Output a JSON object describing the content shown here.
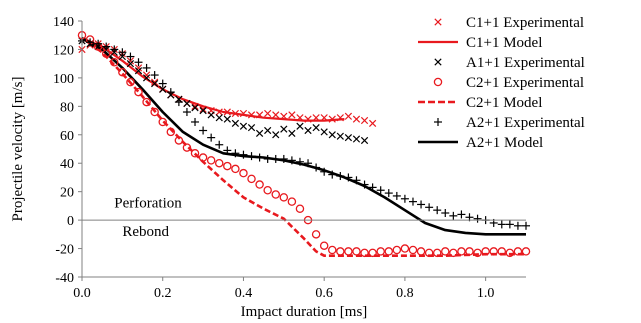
{
  "chart_data": {
    "type": "line",
    "title": "",
    "xlabel": "Impact duration [ms]",
    "ylabel": "Projectile velocity  [m/s]",
    "xlim": [
      0.0,
      1.1
    ],
    "ylim": [
      -40,
      140
    ],
    "x_ticks": [
      "0.0",
      "0.2",
      "0.4",
      "0.6",
      "0.8",
      "1.0"
    ],
    "x_tick_values": [
      0.0,
      0.2,
      0.4,
      0.6,
      0.8,
      1.0
    ],
    "y_ticks": [
      "-40",
      "-20",
      "0",
      "20",
      "40",
      "60",
      "80",
      "100",
      "120",
      "140"
    ],
    "y_tick_values": [
      -40,
      -20,
      0,
      20,
      40,
      60,
      80,
      100,
      120,
      140
    ],
    "grid": false,
    "zero_line": true,
    "legend_position": "right",
    "annotations": [
      {
        "text": "Perforation",
        "x": 0.08,
        "y": 9
      },
      {
        "text": "Rebond",
        "x": 0.1,
        "y": -11
      }
    ],
    "series": [
      {
        "name": "C1+1 Experimental",
        "style": "marker-x",
        "color": "#e8191e",
        "points": [
          [
            0.0,
            120
          ],
          [
            0.02,
            123
          ],
          [
            0.04,
            124
          ],
          [
            0.06,
            122
          ],
          [
            0.08,
            120
          ],
          [
            0.1,
            117
          ],
          [
            0.12,
            112
          ],
          [
            0.14,
            107
          ],
          [
            0.16,
            102
          ],
          [
            0.18,
            97
          ],
          [
            0.2,
            92
          ],
          [
            0.22,
            88
          ],
          [
            0.24,
            85
          ],
          [
            0.26,
            82
          ],
          [
            0.28,
            80
          ],
          [
            0.3,
            78
          ],
          [
            0.32,
            77
          ],
          [
            0.34,
            76
          ],
          [
            0.36,
            76
          ],
          [
            0.38,
            75
          ],
          [
            0.4,
            75
          ],
          [
            0.42,
            74
          ],
          [
            0.44,
            74
          ],
          [
            0.46,
            75
          ],
          [
            0.48,
            74
          ],
          [
            0.5,
            73
          ],
          [
            0.52,
            74
          ],
          [
            0.54,
            72
          ],
          [
            0.56,
            71
          ],
          [
            0.58,
            72
          ],
          [
            0.6,
            72
          ],
          [
            0.62,
            71
          ],
          [
            0.64,
            72
          ],
          [
            0.66,
            73
          ],
          [
            0.68,
            71
          ],
          [
            0.7,
            70
          ],
          [
            0.72,
            68
          ]
        ]
      },
      {
        "name": "C1+1 Model",
        "style": "line-solid",
        "color": "#e8191e",
        "points": [
          [
            0.0,
            128
          ],
          [
            0.05,
            122
          ],
          [
            0.1,
            112
          ],
          [
            0.15,
            101
          ],
          [
            0.2,
            92
          ],
          [
            0.25,
            85
          ],
          [
            0.3,
            80
          ],
          [
            0.35,
            76
          ],
          [
            0.4,
            74
          ],
          [
            0.45,
            72
          ],
          [
            0.5,
            71
          ],
          [
            0.55,
            70
          ],
          [
            0.6,
            70
          ],
          [
            0.65,
            71
          ]
        ]
      },
      {
        "name": "A1+1 Experimental",
        "style": "marker-x",
        "color": "#000000",
        "points": [
          [
            0.0,
            126
          ],
          [
            0.02,
            124
          ],
          [
            0.04,
            122
          ],
          [
            0.06,
            120
          ],
          [
            0.08,
            118
          ],
          [
            0.1,
            115
          ],
          [
            0.12,
            110
          ],
          [
            0.14,
            105
          ],
          [
            0.16,
            100
          ],
          [
            0.18,
            96
          ],
          [
            0.2,
            92
          ],
          [
            0.22,
            88
          ],
          [
            0.24,
            85
          ],
          [
            0.26,
            82
          ],
          [
            0.28,
            79
          ],
          [
            0.3,
            77
          ],
          [
            0.32,
            74
          ],
          [
            0.34,
            72
          ],
          [
            0.36,
            71
          ],
          [
            0.38,
            68
          ],
          [
            0.4,
            66
          ],
          [
            0.42,
            65
          ],
          [
            0.44,
            61
          ],
          [
            0.46,
            63
          ],
          [
            0.48,
            60
          ],
          [
            0.5,
            64
          ],
          [
            0.52,
            61
          ],
          [
            0.54,
            66
          ],
          [
            0.56,
            63
          ],
          [
            0.58,
            65
          ],
          [
            0.6,
            62
          ],
          [
            0.62,
            60
          ],
          [
            0.64,
            59
          ],
          [
            0.66,
            58
          ],
          [
            0.68,
            57
          ],
          [
            0.7,
            56
          ]
        ]
      },
      {
        "name": "C2+1 Experimental",
        "style": "marker-circle",
        "color": "#e8191e",
        "points": [
          [
            0.0,
            130
          ],
          [
            0.02,
            127
          ],
          [
            0.04,
            122
          ],
          [
            0.06,
            117
          ],
          [
            0.08,
            111
          ],
          [
            0.1,
            104
          ],
          [
            0.12,
            97
          ],
          [
            0.14,
            90
          ],
          [
            0.16,
            83
          ],
          [
            0.18,
            76
          ],
          [
            0.2,
            69
          ],
          [
            0.22,
            62
          ],
          [
            0.24,
            56
          ],
          [
            0.26,
            51
          ],
          [
            0.28,
            47
          ],
          [
            0.3,
            44
          ],
          [
            0.32,
            42
          ],
          [
            0.34,
            40
          ],
          [
            0.36,
            38
          ],
          [
            0.38,
            36
          ],
          [
            0.4,
            33
          ],
          [
            0.42,
            29
          ],
          [
            0.44,
            25
          ],
          [
            0.46,
            21
          ],
          [
            0.48,
            18
          ],
          [
            0.5,
            16
          ],
          [
            0.52,
            13
          ],
          [
            0.54,
            8
          ],
          [
            0.56,
            0
          ],
          [
            0.58,
            -10
          ],
          [
            0.6,
            -18
          ],
          [
            0.62,
            -21
          ],
          [
            0.64,
            -22
          ],
          [
            0.66,
            -22
          ],
          [
            0.68,
            -22
          ],
          [
            0.7,
            -23
          ],
          [
            0.72,
            -23
          ],
          [
            0.74,
            -22
          ],
          [
            0.76,
            -22
          ],
          [
            0.78,
            -21
          ],
          [
            0.8,
            -20
          ],
          [
            0.82,
            -21
          ],
          [
            0.84,
            -22
          ],
          [
            0.86,
            -23
          ],
          [
            0.88,
            -23
          ],
          [
            0.9,
            -22
          ],
          [
            0.92,
            -23
          ],
          [
            0.94,
            -22
          ],
          [
            0.96,
            -22
          ],
          [
            0.98,
            -23
          ],
          [
            1.0,
            -22
          ],
          [
            1.02,
            -22
          ],
          [
            1.04,
            -22
          ],
          [
            1.06,
            -23
          ],
          [
            1.08,
            -22
          ],
          [
            1.1,
            -22
          ]
        ]
      },
      {
        "name": "C2+1 Model",
        "style": "line-dashed",
        "color": "#e8191e",
        "points": [
          [
            0.0,
            128
          ],
          [
            0.05,
            118
          ],
          [
            0.1,
            103
          ],
          [
            0.15,
            87
          ],
          [
            0.2,
            70
          ],
          [
            0.25,
            55
          ],
          [
            0.3,
            41
          ],
          [
            0.35,
            28
          ],
          [
            0.4,
            16
          ],
          [
            0.45,
            8
          ],
          [
            0.5,
            1
          ],
          [
            0.55,
            -13
          ],
          [
            0.58,
            -22
          ],
          [
            0.6,
            -25
          ],
          [
            0.7,
            -25
          ],
          [
            0.8,
            -25
          ],
          [
            0.9,
            -25
          ],
          [
            1.0,
            -24
          ],
          [
            1.1,
            -24
          ]
        ]
      },
      {
        "name": "A2+1 Experimental",
        "style": "marker-plus",
        "color": "#000000",
        "points": [
          [
            0.0,
            126
          ],
          [
            0.02,
            125
          ],
          [
            0.04,
            124
          ],
          [
            0.06,
            122
          ],
          [
            0.08,
            120
          ],
          [
            0.1,
            118
          ],
          [
            0.12,
            115
          ],
          [
            0.14,
            111
          ],
          [
            0.16,
            107
          ],
          [
            0.18,
            102
          ],
          [
            0.2,
            96
          ],
          [
            0.22,
            90
          ],
          [
            0.24,
            83
          ],
          [
            0.26,
            76
          ],
          [
            0.28,
            69
          ],
          [
            0.3,
            63
          ],
          [
            0.32,
            58
          ],
          [
            0.34,
            53
          ],
          [
            0.36,
            49
          ],
          [
            0.38,
            47
          ],
          [
            0.4,
            46
          ],
          [
            0.42,
            45
          ],
          [
            0.44,
            44
          ],
          [
            0.46,
            43
          ],
          [
            0.48,
            43
          ],
          [
            0.5,
            43
          ],
          [
            0.52,
            42
          ],
          [
            0.54,
            41
          ],
          [
            0.56,
            40
          ],
          [
            0.58,
            37
          ],
          [
            0.6,
            34
          ],
          [
            0.62,
            32
          ],
          [
            0.64,
            31
          ],
          [
            0.66,
            30
          ],
          [
            0.68,
            28
          ],
          [
            0.7,
            25
          ],
          [
            0.72,
            23
          ],
          [
            0.74,
            21
          ],
          [
            0.76,
            19
          ],
          [
            0.78,
            17
          ],
          [
            0.8,
            15
          ],
          [
            0.82,
            13
          ],
          [
            0.84,
            11
          ],
          [
            0.86,
            9
          ],
          [
            0.88,
            7
          ],
          [
            0.9,
            5
          ],
          [
            0.92,
            3
          ],
          [
            0.94,
            4
          ],
          [
            0.96,
            2
          ],
          [
            0.98,
            1
          ],
          [
            1.0,
            0
          ],
          [
            1.02,
            -2
          ],
          [
            1.04,
            -3
          ],
          [
            1.06,
            -3
          ],
          [
            1.08,
            -4
          ],
          [
            1.1,
            -4
          ]
        ]
      },
      {
        "name": "A2+1 Model",
        "style": "line-solid-thick",
        "color": "#000000",
        "points": [
          [
            0.0,
            128
          ],
          [
            0.05,
            120
          ],
          [
            0.1,
            107
          ],
          [
            0.15,
            92
          ],
          [
            0.2,
            76
          ],
          [
            0.25,
            62
          ],
          [
            0.3,
            53
          ],
          [
            0.35,
            47
          ],
          [
            0.4,
            45
          ],
          [
            0.45,
            44
          ],
          [
            0.5,
            42
          ],
          [
            0.55,
            39
          ],
          [
            0.6,
            35
          ],
          [
            0.65,
            30
          ],
          [
            0.7,
            24
          ],
          [
            0.75,
            16
          ],
          [
            0.8,
            7
          ],
          [
            0.85,
            -2
          ],
          [
            0.9,
            -7
          ],
          [
            0.95,
            -9
          ],
          [
            1.0,
            -10
          ],
          [
            1.05,
            -10
          ],
          [
            1.1,
            -10
          ]
        ]
      }
    ]
  }
}
